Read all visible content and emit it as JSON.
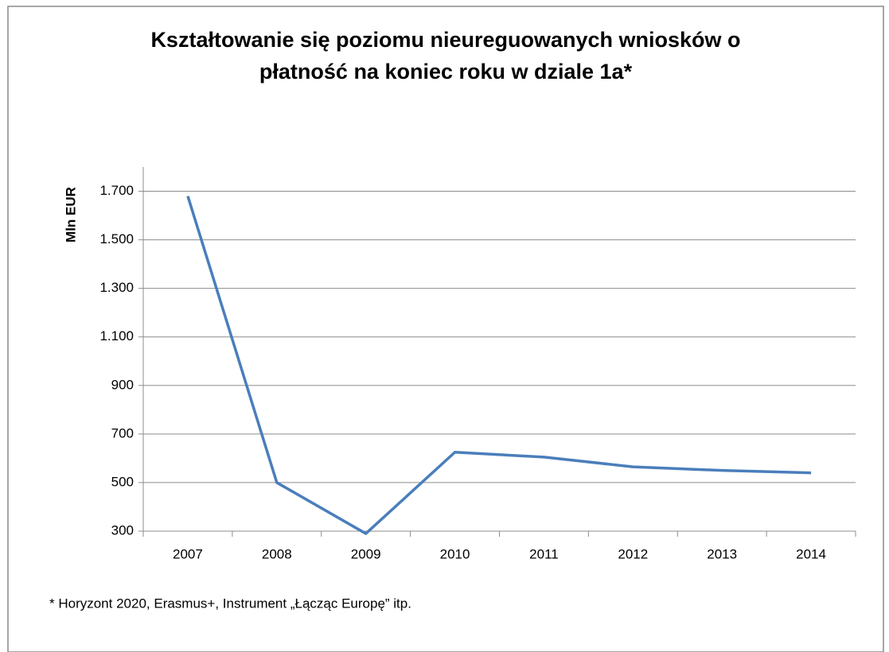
{
  "chart_data": {
    "type": "line",
    "title": "Kształtowanie się poziomu nieureguowanych wniosków o płatność na koniec roku w dziale 1a*",
    "ylabel": "Mln EUR",
    "footnote": "* Horyzont 2020, Erasmus+, Instrument „Łącząc Europę” itp.",
    "categories": [
      "2007",
      "2008",
      "2009",
      "2010",
      "2011",
      "2012",
      "2013",
      "2014"
    ],
    "series": [
      {
        "name": "Mln EUR",
        "color": "#4a7ebb",
        "values": [
          1680,
          500,
          290,
          625,
          605,
          565,
          550,
          540
        ]
      }
    ],
    "ylim": [
      300,
      1800
    ],
    "yticks": [
      300,
      500,
      700,
      900,
      {
        "value": 1100,
        "label": "1.100"
      },
      {
        "value": 1300,
        "label": "1.300"
      },
      {
        "value": 1500,
        "label": "1.500"
      },
      {
        "value": 1700,
        "label": "1.700"
      }
    ],
    "grid": true
  }
}
